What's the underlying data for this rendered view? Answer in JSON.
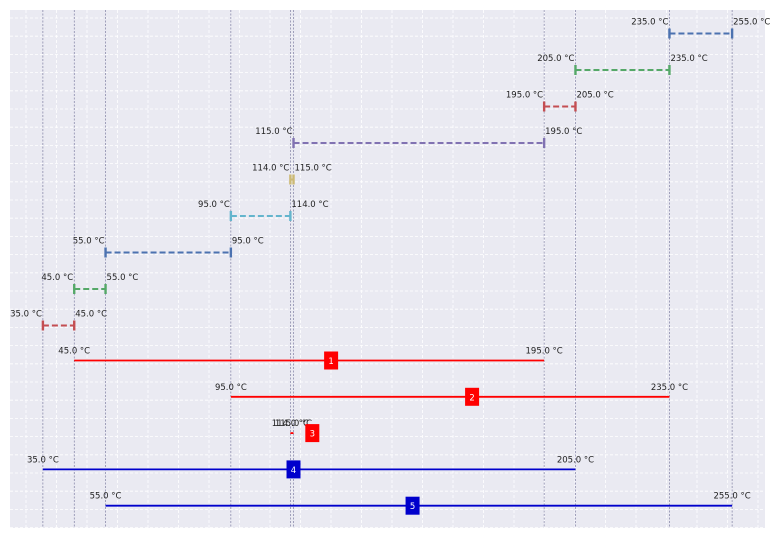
{
  "chart_data": {
    "type": "interval-range",
    "title": "",
    "xlabel": "",
    "ylabel": "",
    "x_unit": "°C",
    "xlim": [
      24.5,
      265.5
    ],
    "grid": true,
    "colors": {
      "background": "#EAEAF2",
      "grid": "#FFFFFF",
      "guide": "#6E6E96",
      "red": "#FF0000",
      "blue": "#0000CC",
      "dash_blue": "#4C72B0",
      "dash_green": "#55A868",
      "dash_red": "#C44E52",
      "dash_purple": "#8172B2",
      "dash_gold": "#CCB974",
      "dash_cyan": "#64B5CD"
    },
    "guide_lines": [
      35,
      45,
      55,
      95,
      114,
      115,
      195,
      205,
      235,
      255
    ],
    "segments": [
      {
        "start": 235,
        "end": 255,
        "start_label": "235.0 °C",
        "end_label": "255.0 °C",
        "color": "dash_blue"
      },
      {
        "start": 205,
        "end": 235,
        "start_label": "205.0 °C",
        "end_label": "235.0 °C",
        "color": "dash_green"
      },
      {
        "start": 195,
        "end": 205,
        "start_label": "195.0 °C",
        "end_label": "205.0 °C",
        "color": "dash_red"
      },
      {
        "start": 115,
        "end": 195,
        "start_label": "115.0 °C",
        "end_label": "195.0 °C",
        "color": "dash_purple"
      },
      {
        "start": 114,
        "end": 115,
        "start_label": "114.0 °C",
        "end_label": "115.0 °C",
        "color": "dash_gold"
      },
      {
        "start": 95,
        "end": 114,
        "start_label": "95.0 °C",
        "end_label": "114.0 °C",
        "color": "dash_cyan"
      },
      {
        "start": 55,
        "end": 95,
        "start_label": "55.0 °C",
        "end_label": "95.0 °C",
        "color": "dash_blue"
      },
      {
        "start": 45,
        "end": 55,
        "start_label": "45.0 °C",
        "end_label": "55.0 °C",
        "color": "dash_green"
      },
      {
        "start": 35,
        "end": 45,
        "start_label": "35.0 °C",
        "end_label": "45.0 °C",
        "color": "dash_red"
      }
    ],
    "ranges": [
      {
        "id": "1",
        "start": 45,
        "end": 195,
        "start_label": "45.0 °C",
        "end_label": "195.0 °C",
        "color": "red",
        "marker_at": 127
      },
      {
        "id": "2",
        "start": 95,
        "end": 235,
        "start_label": "95.0 °C",
        "end_label": "235.0 °C",
        "color": "red",
        "marker_at": 172
      },
      {
        "id": "3",
        "start": 114,
        "end": 115,
        "start_label": "114.0 °C",
        "end_label": "115.0 °C",
        "color": "red",
        "marker_at": 121
      },
      {
        "id": "4",
        "start": 35,
        "end": 205,
        "start_label": "35.0 °C",
        "end_label": "205.0 °C",
        "color": "blue",
        "marker_at": 115
      },
      {
        "id": "5",
        "start": 55,
        "end": 255,
        "start_label": "55.0 °C",
        "end_label": "255.0 °C",
        "color": "blue",
        "marker_at": 153
      }
    ]
  }
}
